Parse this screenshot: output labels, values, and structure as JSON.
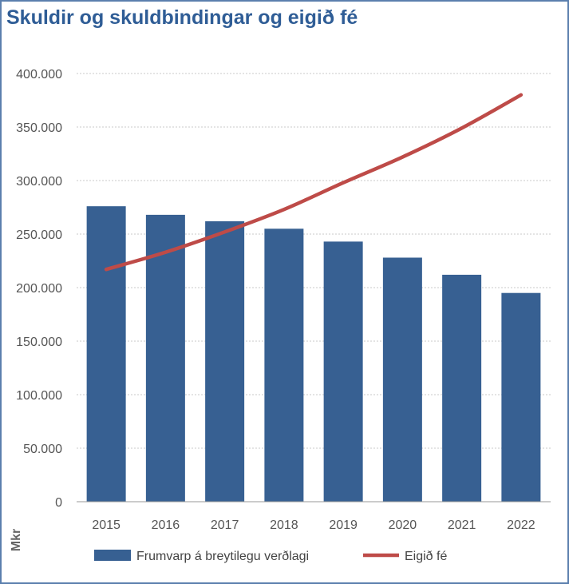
{
  "title": "Skuldir og skuldbindingar og eigið fé",
  "chart_data": {
    "type": "bar",
    "title": "Skuldir og skuldbindingar og eigið fé",
    "categories": [
      "2015",
      "2016",
      "2017",
      "2018",
      "2019",
      "2020",
      "2021",
      "2022"
    ],
    "series": [
      {
        "name": "Frumvarp á breytilegu verðlagi",
        "type": "bar",
        "color": "#376092",
        "values": [
          276000,
          268000,
          262000,
          255000,
          243000,
          228000,
          212000,
          195000
        ]
      },
      {
        "name": "Eigið fé",
        "type": "line",
        "color": "#be4b48",
        "values": [
          217000,
          233000,
          252000,
          273000,
          298000,
          322000,
          349000,
          380000
        ]
      }
    ],
    "xlabel": "",
    "ylabel": "Mkr",
    "ylim": [
      0,
      400000
    ],
    "yticks": [
      0,
      50000,
      100000,
      150000,
      200000,
      250000,
      300000,
      350000,
      400000
    ],
    "ytick_labels": [
      "0",
      "50.000",
      "100.000",
      "150.000",
      "200.000",
      "250.000",
      "300.000",
      "350.000",
      "400.000"
    ],
    "grid": true,
    "legend": "bottom"
  }
}
